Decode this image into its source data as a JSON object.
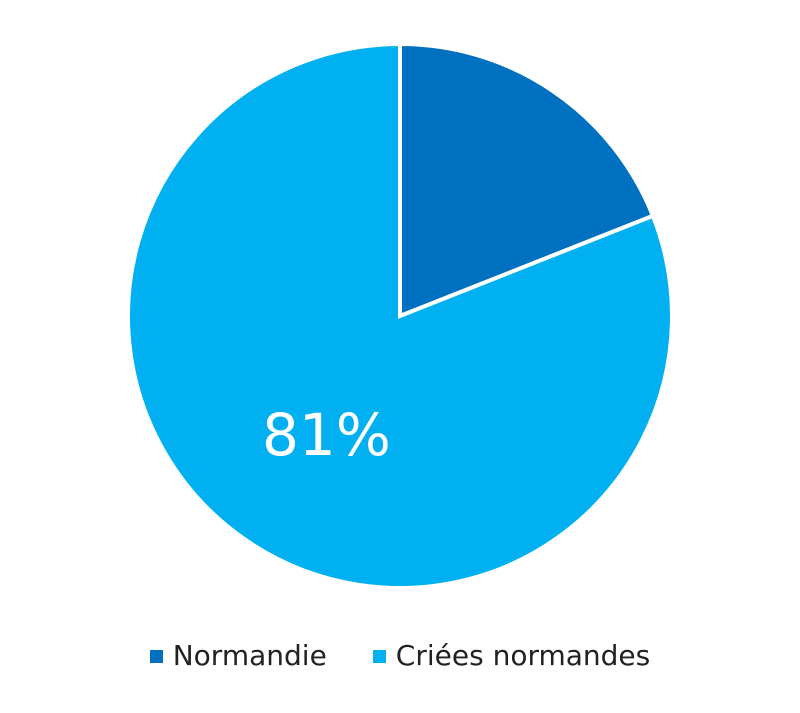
{
  "chart_data": {
    "type": "pie",
    "slices": [
      {
        "name": "Normandie",
        "value": 19,
        "color": "#0070c0"
      },
      {
        "name": "Criées normandes",
        "value": 81,
        "color": "#00b0f0"
      }
    ],
    "data_labels": [
      {
        "slice": "Criées normandes",
        "text": "81%"
      }
    ],
    "legend_position": "bottom",
    "start_angle_deg": 0,
    "direction": "clockwise"
  }
}
